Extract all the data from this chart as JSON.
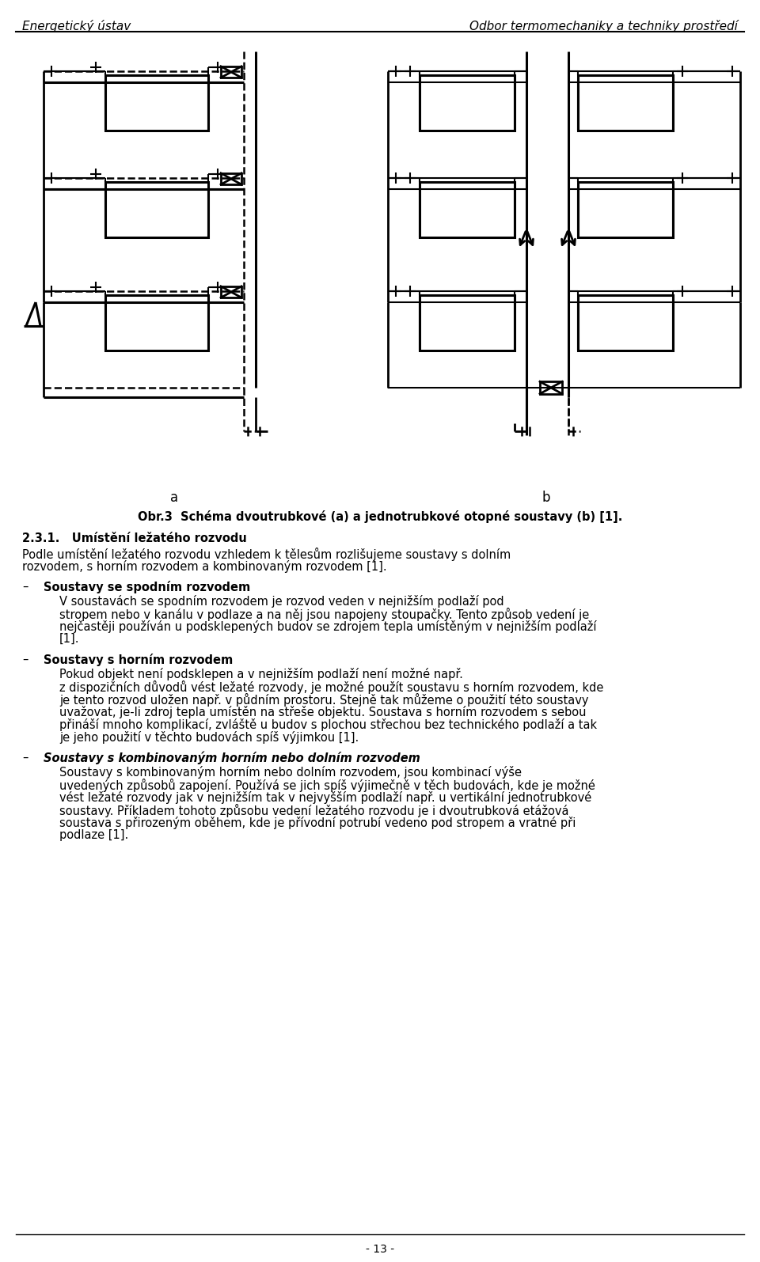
{
  "header_left": "Energetický ústav",
  "header_right": "Odbor termomechaniky a techniky prostředí",
  "fig_caption": "Obr.3  Schéma dvoutrubkové (a) a jednotrubkové otopné soustavy (b) [1].",
  "label_a": "a",
  "label_b": "b",
  "section_title_231": "2.3.1.   Umístění ležatého rozvodu",
  "para_231_1": "Podle umístění ležatého rozvodu vzhledem k tělesům rozlišujeme soustavy s dolním",
  "para_231_2": "rozvodem, s horním rozvodem a kombinovaným rozvodem [1].",
  "bullet1_title": "Soustavy se spodním rozvodem",
  "bullet1_lines": [
    "V soustavách se spodním rozvodem je rozvod veden v nejnižším podlaží pod",
    "stropem nebo v kanálu v podlaze a na něj jsou napojeny stoupačky. Tento způsob vedení je",
    "nejčastěji používán u podsklepených budov se zdrojem tepla umístěným v nejnižším podlaží",
    "[1]."
  ],
  "bullet2_title": "Soustavy s horním rozvodem",
  "bullet2_lines": [
    "Pokud objekt není podsklepen a v nejnižším podlaží není možné např.",
    "z dispozičních důvodů vést ležaté rozvody, je možné použít soustavu s horním rozvodem, kde",
    "je tento rozvod uložen např. v půdním prostoru. Stejně tak můžeme o použití této soustavy",
    "uvažovat, je-li zdroj tepla umístěn na střeše objektu. Soustava s horním rozvodem s sebou",
    "přináší mnoho komplikací, zvláště u budov s plochou střechou bez technického podlaží a tak",
    "je jeho použití v těchto budovách spíš výjimkou [1]."
  ],
  "bullet3_title": "Soustavy s kombinovaným horním nebo dolním rozvodem",
  "bullet3_lines": [
    "Soustavy s kombinovaným horním nebo dolním rozvodem, jsou kombinací výše",
    "uvedených způsobů zapojení. Používá se jich spíš výjimečně v těch budovách, kde je možné",
    "vést ležaté rozvody jak v nejnižším tak v nejvyšším podlaží např. u vertikální jednotrubkové",
    "soustavy. Příkladem tohoto způsobu vedení ležatého rozvodu je i dvoutrubková etážová",
    "soustava s přirozeným oběhem, kde je přívodní potrubí vedeno pod stropem a vratné při",
    "podlaze [1]."
  ],
  "footer": "- 13 -",
  "bg_color": "#ffffff",
  "text_color": "#000000"
}
